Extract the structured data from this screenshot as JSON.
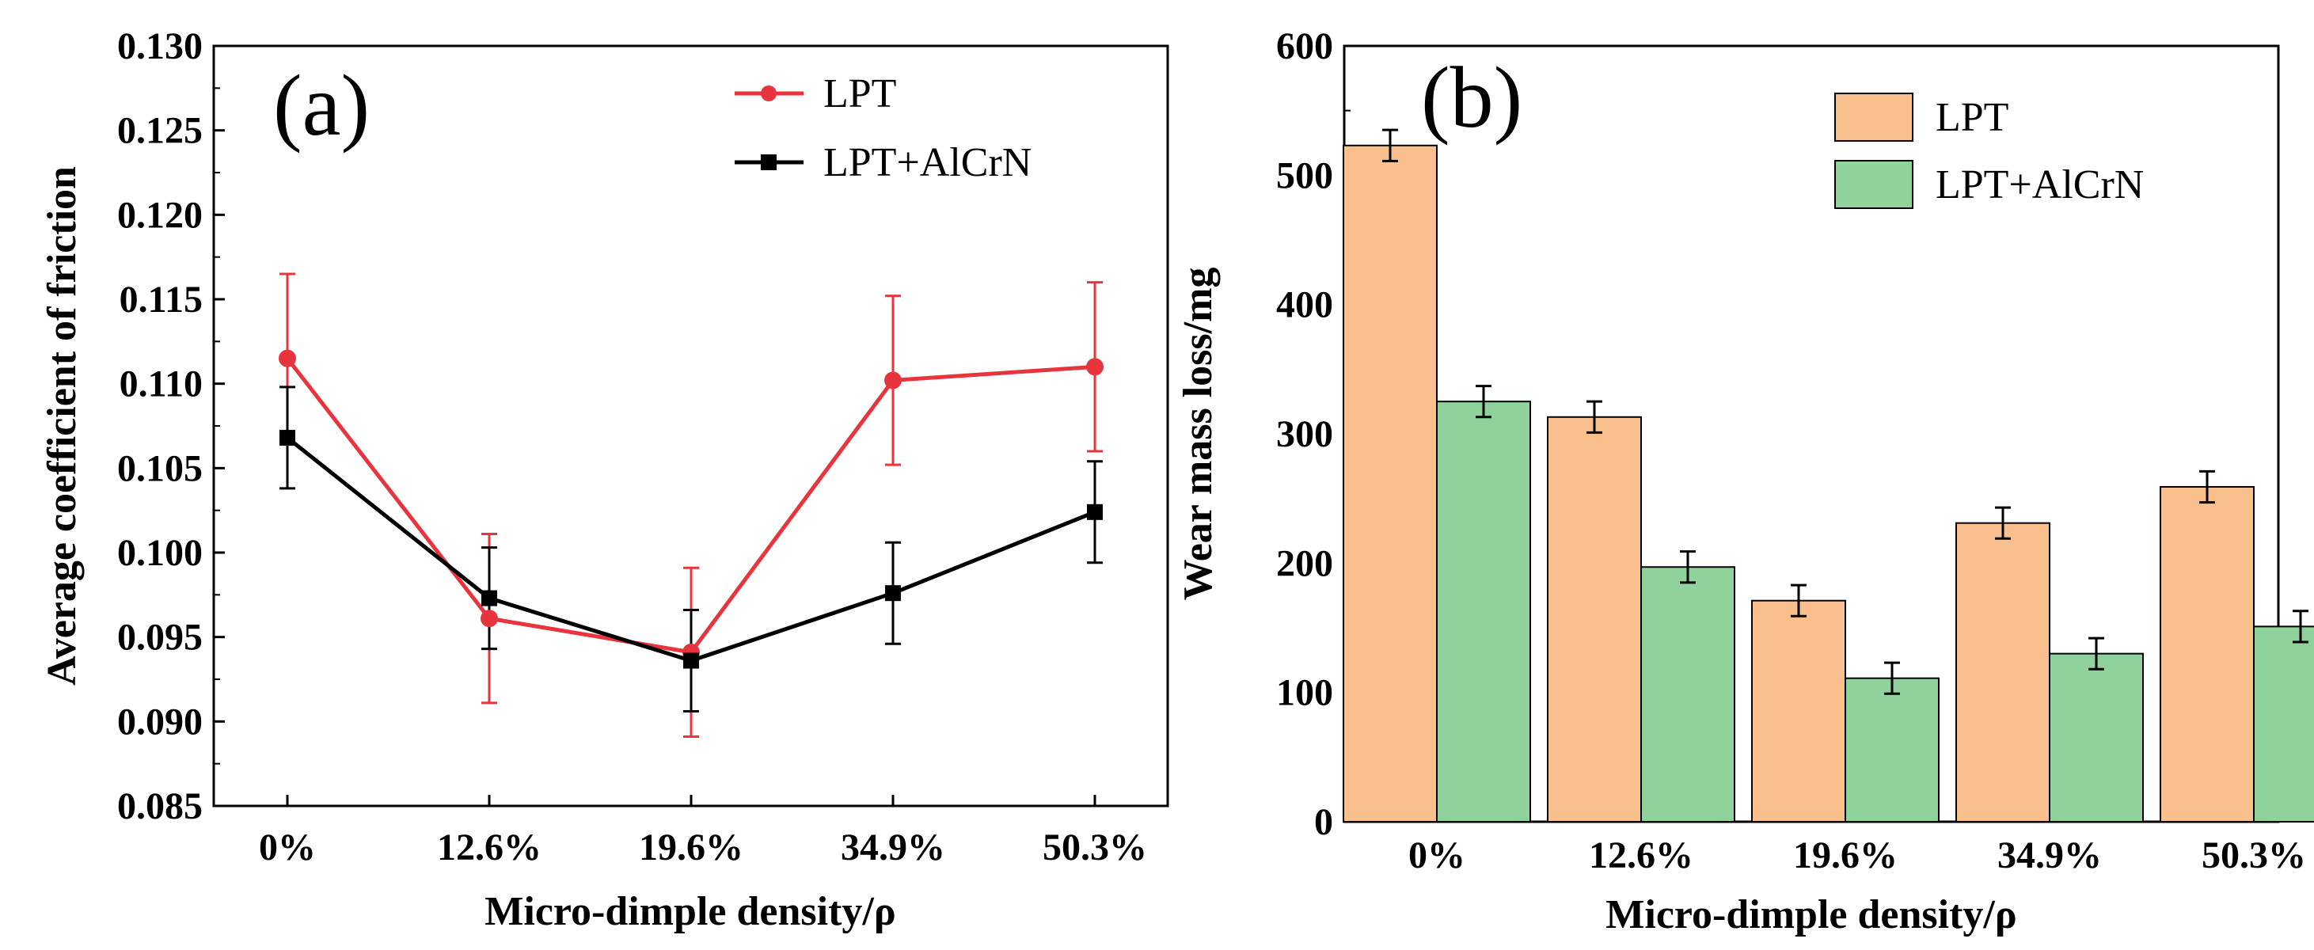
{
  "chart_data": [
    {
      "type": "line",
      "panel_label": "(a)",
      "xlabel": "Micro-dimple density/ρ",
      "ylabel": "Average coefficient of friction",
      "categories": [
        "0%",
        "12.6%",
        "19.6%",
        "34.9%",
        "50.3%"
      ],
      "ylim": [
        0.085,
        0.13
      ],
      "yticks": [
        "0.085",
        "0.090",
        "0.095",
        "0.100",
        "0.105",
        "0.110",
        "0.115",
        "0.120",
        "0.125",
        "0.130"
      ],
      "legend_position": "top-right",
      "series": [
        {
          "name": "LPT",
          "color": "#e8343c",
          "marker": "circle",
          "values": [
            0.1115,
            0.0961,
            0.0941,
            0.1102,
            0.111
          ],
          "errors": [
            0.005,
            0.005,
            0.005,
            0.005,
            0.005
          ]
        },
        {
          "name": "LPT+AlCrN",
          "color": "#000000",
          "marker": "square",
          "values": [
            0.1068,
            0.0973,
            0.0936,
            0.0976,
            0.1024
          ],
          "errors": [
            0.003,
            0.003,
            0.003,
            0.003,
            0.003
          ]
        }
      ]
    },
    {
      "type": "bar",
      "panel_label": "(b)",
      "xlabel": "Micro-dimple density/ρ",
      "ylabel": "Wear mass loss/mg",
      "categories": [
        "0%",
        "12.6%",
        "19.6%",
        "34.9%",
        "50.3%"
      ],
      "ylim": [
        0,
        600
      ],
      "yticks": [
        "0",
        "100",
        "200",
        "300",
        "400",
        "500",
        "600"
      ],
      "legend_position": "top-right",
      "series": [
        {
          "name": "LPT",
          "color": "#f9c08e",
          "values": [
            523,
            313,
            171,
            231,
            259
          ],
          "errors": [
            12,
            12,
            12,
            12,
            12
          ]
        },
        {
          "name": "LPT+AlCrN",
          "color": "#8fd29b",
          "values": [
            325,
            197,
            111,
            130,
            151
          ],
          "errors": [
            12,
            12,
            12,
            12,
            12
          ]
        }
      ]
    }
  ]
}
